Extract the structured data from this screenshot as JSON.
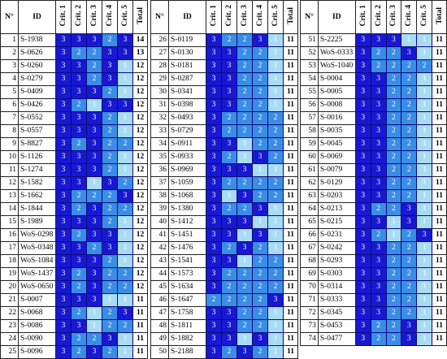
{
  "cell_colors": {
    "1": "#a8dcf4",
    "2": "#3a8de6",
    "3": "#1818d2"
  },
  "tables": [
    {
      "header": [
        "N°",
        "ID",
        "Crit. 1",
        "Crit. 2",
        "Crit. 3",
        "Crit. 4",
        "Crit. 5",
        "Total"
      ],
      "rows": [
        [
          1,
          "S-1938",
          3,
          3,
          3,
          2,
          3,
          14
        ],
        [
          2,
          "S-0626",
          3,
          2,
          2,
          3,
          3,
          13
        ],
        [
          3,
          "S-0260",
          3,
          3,
          2,
          3,
          1,
          12
        ],
        [
          4,
          "S-0279",
          3,
          3,
          2,
          3,
          1,
          12
        ],
        [
          5,
          "S-0409",
          3,
          3,
          3,
          2,
          1,
          12
        ],
        [
          6,
          "S-0426",
          3,
          2,
          1,
          3,
          3,
          12
        ],
        [
          7,
          "S-0552",
          3,
          3,
          3,
          2,
          1,
          12
        ],
        [
          8,
          "S-0557",
          3,
          3,
          3,
          2,
          1,
          12
        ],
        [
          9,
          "S-8827",
          3,
          2,
          3,
          2,
          2,
          12
        ],
        [
          10,
          "S-1126",
          3,
          3,
          3,
          2,
          1,
          12
        ],
        [
          11,
          "S-1274",
          3,
          3,
          3,
          2,
          1,
          12
        ],
        [
          12,
          "S-1582",
          3,
          3,
          1,
          3,
          2,
          12
        ],
        [
          13,
          "S-1662",
          3,
          2,
          2,
          2,
          3,
          12
        ],
        [
          14,
          "S-1844",
          3,
          2,
          3,
          2,
          2,
          12
        ],
        [
          15,
          "S-1989",
          3,
          3,
          3,
          2,
          1,
          12
        ],
        [
          16,
          "WoS-0298",
          3,
          2,
          3,
          3,
          1,
          12
        ],
        [
          17,
          "WoS-0348",
          3,
          3,
          2,
          3,
          1,
          12
        ],
        [
          18,
          "WoS-1084",
          3,
          3,
          3,
          2,
          1,
          12
        ],
        [
          19,
          "WoS-1437",
          3,
          2,
          3,
          2,
          2,
          12
        ],
        [
          20,
          "WoS-0650",
          3,
          2,
          3,
          2,
          2,
          12
        ],
        [
          21,
          "S-0007",
          3,
          3,
          3,
          1,
          1,
          11
        ],
        [
          22,
          "S-0068",
          3,
          2,
          1,
          2,
          3,
          11
        ],
        [
          23,
          "S-0086",
          3,
          3,
          1,
          2,
          2,
          11
        ],
        [
          24,
          "S-0090",
          3,
          2,
          2,
          3,
          1,
          11
        ],
        [
          25,
          "S-0096",
          3,
          2,
          3,
          2,
          1,
          11
        ]
      ]
    },
    {
      "header": [
        "N°",
        "ID",
        "Crit. 1",
        "Crit. 2",
        "Crit. 3",
        "Crit. 4",
        "Crit. 5",
        "Total"
      ],
      "rows": [
        [
          26,
          "S-0119",
          3,
          2,
          2,
          3,
          1,
          11
        ],
        [
          27,
          "S-0130",
          3,
          3,
          2,
          2,
          1,
          11
        ],
        [
          28,
          "S-0181",
          3,
          3,
          2,
          2,
          1,
          11
        ],
        [
          29,
          "S-0287",
          3,
          3,
          2,
          2,
          1,
          11
        ],
        [
          30,
          "S-0341",
          3,
          3,
          2,
          2,
          1,
          11
        ],
        [
          31,
          "S-0398",
          3,
          3,
          2,
          2,
          1,
          11
        ],
        [
          32,
          "S-0493",
          3,
          2,
          2,
          2,
          2,
          11
        ],
        [
          33,
          "S-0729",
          3,
          2,
          2,
          2,
          2,
          11
        ],
        [
          34,
          "S-0911",
          3,
          3,
          1,
          2,
          2,
          11
        ],
        [
          35,
          "S-0933",
          3,
          2,
          1,
          3,
          2,
          11
        ],
        [
          36,
          "S-0969",
          3,
          3,
          3,
          1,
          1,
          11
        ],
        [
          37,
          "S-1059",
          3,
          2,
          2,
          2,
          2,
          11
        ],
        [
          38,
          "S-1068",
          3,
          1,
          3,
          2,
          2,
          11
        ],
        [
          39,
          "S-1380",
          3,
          2,
          2,
          3,
          1,
          11
        ],
        [
          40,
          "S-1412",
          3,
          3,
          3,
          1,
          1,
          11
        ],
        [
          41,
          "S-1451",
          3,
          3,
          1,
          3,
          1,
          11
        ],
        [
          42,
          "S-1476",
          3,
          2,
          3,
          2,
          1,
          11
        ],
        [
          43,
          "S-1541",
          3,
          3,
          1,
          2,
          2,
          11
        ],
        [
          44,
          "S-1573",
          3,
          2,
          2,
          2,
          2,
          11
        ],
        [
          45,
          "S-1634",
          3,
          2,
          2,
          2,
          2,
          11
        ],
        [
          46,
          "S-1647",
          2,
          2,
          2,
          2,
          3,
          11
        ],
        [
          47,
          "S-1758",
          3,
          3,
          2,
          2,
          1,
          11
        ],
        [
          48,
          "S-1811",
          3,
          3,
          2,
          2,
          1,
          11
        ],
        [
          49,
          "S-1882",
          3,
          3,
          1,
          3,
          1,
          11
        ],
        [
          50,
          "S-2188",
          3,
          2,
          3,
          2,
          1,
          11
        ]
      ]
    },
    {
      "header": [
        "N°",
        "ID",
        "Crit. 1",
        "Crit. 2",
        "Crit. 3",
        "Crit. 4",
        "Crit. 5",
        "Total"
      ],
      "rows": [
        [
          51,
          "S-2225",
          3,
          3,
          3,
          1,
          1,
          11
        ],
        [
          52,
          "WoS-0333",
          3,
          2,
          2,
          3,
          1,
          11
        ],
        [
          53,
          "WoS-1040",
          3,
          2,
          2,
          2,
          2,
          11
        ],
        [
          54,
          "S-0004",
          3,
          3,
          2,
          2,
          1,
          11
        ],
        [
          55,
          "S-0005",
          3,
          3,
          2,
          2,
          1,
          11
        ],
        [
          56,
          "S-0008",
          3,
          3,
          2,
          2,
          1,
          11
        ],
        [
          57,
          "S-0016",
          3,
          3,
          2,
          2,
          1,
          11
        ],
        [
          58,
          "S-0035",
          3,
          3,
          2,
          2,
          1,
          11
        ],
        [
          59,
          "S-0045",
          3,
          3,
          2,
          2,
          1,
          11
        ],
        [
          60,
          "S-0069",
          3,
          3,
          2,
          2,
          1,
          11
        ],
        [
          61,
          "S-0079",
          3,
          3,
          2,
          2,
          1,
          11
        ],
        [
          62,
          "S-0129",
          3,
          3,
          2,
          2,
          1,
          11
        ],
        [
          63,
          "S-0203",
          3,
          3,
          2,
          2,
          1,
          11
        ],
        [
          64,
          "S-0213",
          3,
          2,
          2,
          3,
          1,
          11
        ],
        [
          65,
          "S-0215",
          3,
          3,
          1,
          3,
          1,
          11
        ],
        [
          66,
          "S-0231",
          3,
          2,
          1,
          2,
          3,
          11
        ],
        [
          67,
          "S-0242",
          3,
          3,
          2,
          2,
          1,
          11
        ],
        [
          68,
          "S-0293",
          3,
          3,
          2,
          2,
          1,
          11
        ],
        [
          69,
          "S-0303",
          3,
          3,
          2,
          2,
          1,
          11
        ],
        [
          70,
          "S-0314",
          3,
          3,
          2,
          2,
          1,
          11
        ],
        [
          71,
          "S-0333",
          3,
          3,
          2,
          2,
          1,
          11
        ],
        [
          72,
          "S-0345",
          3,
          3,
          2,
          2,
          1,
          11
        ],
        [
          73,
          "S-0453",
          3,
          2,
          2,
          3,
          1,
          11
        ],
        [
          74,
          "S-0477",
          3,
          2,
          2,
          3,
          1,
          11
        ]
      ]
    }
  ]
}
